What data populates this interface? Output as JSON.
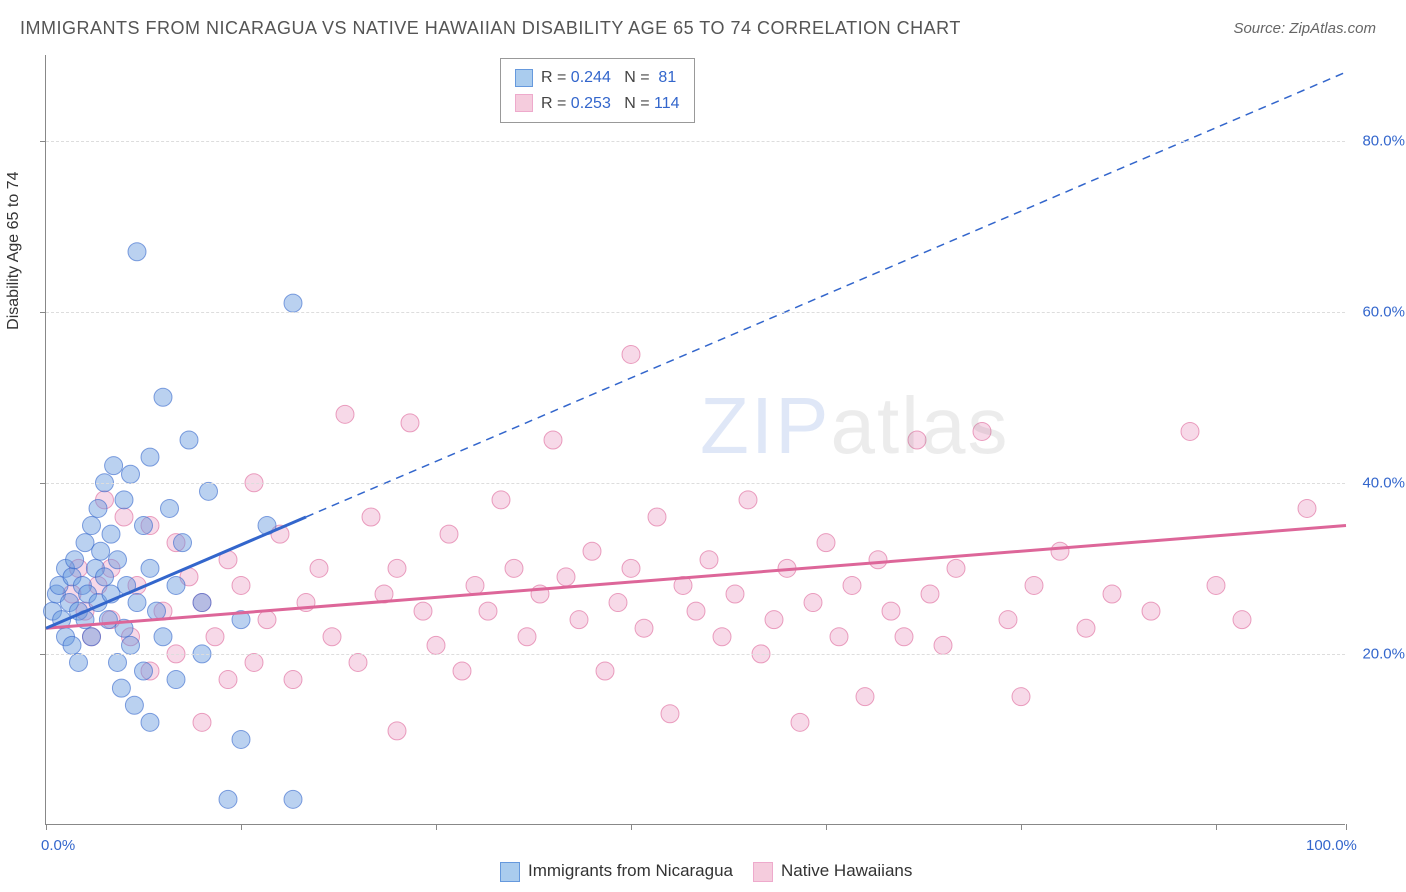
{
  "title": "IMMIGRANTS FROM NICARAGUA VS NATIVE HAWAIIAN DISABILITY AGE 65 TO 74 CORRELATION CHART",
  "source": "Source: ZipAtlas.com",
  "ylabel": "Disability Age 65 to 74",
  "watermark": "ZIPatlas",
  "chart": {
    "type": "scatter",
    "xlim": [
      0,
      100
    ],
    "ylim": [
      0,
      90
    ],
    "x_ticks": [
      0,
      15,
      30,
      45,
      60,
      75,
      90,
      100
    ],
    "y_gridlines": [
      20,
      40,
      60,
      80
    ],
    "x_labels": [
      {
        "v": 0,
        "t": "0.0%"
      },
      {
        "v": 100,
        "t": "100.0%"
      }
    ],
    "y_labels": [
      {
        "v": 20,
        "t": "20.0%"
      },
      {
        "v": 40,
        "t": "40.0%"
      },
      {
        "v": 60,
        "t": "60.0%"
      },
      {
        "v": 80,
        "t": "80.0%"
      }
    ],
    "background_color": "#ffffff",
    "grid_color": "#dddddd",
    "marker_radius": 9,
    "marker_opacity": 0.45,
    "series": [
      {
        "name": "Immigrants from Nicaragua",
        "color": "#6699dd",
        "stroke": "#3366cc",
        "R": "0.244",
        "N": "81",
        "trend": {
          "x1": 0,
          "y1": 23,
          "x2": 20,
          "y2": 36,
          "dashed_to_x": 100,
          "dashed_to_y": 88
        },
        "points": [
          [
            0.5,
            25
          ],
          [
            0.8,
            27
          ],
          [
            1,
            28
          ],
          [
            1.2,
            24
          ],
          [
            1.5,
            30
          ],
          [
            1.5,
            22
          ],
          [
            1.8,
            26
          ],
          [
            2,
            29
          ],
          [
            2,
            21
          ],
          [
            2.2,
            31
          ],
          [
            2.5,
            25
          ],
          [
            2.5,
            19
          ],
          [
            2.8,
            28
          ],
          [
            3,
            33
          ],
          [
            3,
            24
          ],
          [
            3.2,
            27
          ],
          [
            3.5,
            35
          ],
          [
            3.5,
            22
          ],
          [
            3.8,
            30
          ],
          [
            4,
            26
          ],
          [
            4,
            37
          ],
          [
            4.2,
            32
          ],
          [
            4.5,
            40
          ],
          [
            4.5,
            29
          ],
          [
            4.8,
            24
          ],
          [
            5,
            34
          ],
          [
            5,
            27
          ],
          [
            5.2,
            42
          ],
          [
            5.5,
            19
          ],
          [
            5.5,
            31
          ],
          [
            5.8,
            16
          ],
          [
            6,
            38
          ],
          [
            6,
            23
          ],
          [
            6.2,
            28
          ],
          [
            6.5,
            21
          ],
          [
            6.5,
            41
          ],
          [
            6.8,
            14
          ],
          [
            7,
            67
          ],
          [
            7,
            26
          ],
          [
            7.5,
            35
          ],
          [
            7.5,
            18
          ],
          [
            8,
            12
          ],
          [
            8,
            30
          ],
          [
            8,
            43
          ],
          [
            8.5,
            25
          ],
          [
            9,
            50
          ],
          [
            9,
            22
          ],
          [
            9.5,
            37
          ],
          [
            10,
            28
          ],
          [
            10,
            17
          ],
          [
            10.5,
            33
          ],
          [
            11,
            45
          ],
          [
            12,
            26
          ],
          [
            12,
            20
          ],
          [
            12.5,
            39
          ],
          [
            14,
            3
          ],
          [
            15,
            10
          ],
          [
            15,
            24
          ],
          [
            17,
            35
          ],
          [
            19,
            61
          ],
          [
            19,
            3
          ]
        ]
      },
      {
        "name": "Native Hawaiians",
        "color": "#eeaacc",
        "stroke": "#dd6699",
        "R": "0.253",
        "N": "114",
        "trend": {
          "x1": 0,
          "y1": 23,
          "x2": 100,
          "y2": 35
        },
        "points": [
          [
            2,
            27
          ],
          [
            2.5,
            30
          ],
          [
            3,
            25
          ],
          [
            3.5,
            22
          ],
          [
            4,
            28
          ],
          [
            4.5,
            38
          ],
          [
            5,
            30
          ],
          [
            5,
            24
          ],
          [
            6,
            36
          ],
          [
            6.5,
            22
          ],
          [
            7,
            28
          ],
          [
            8,
            35
          ],
          [
            8,
            18
          ],
          [
            9,
            25
          ],
          [
            10,
            33
          ],
          [
            10,
            20
          ],
          [
            11,
            29
          ],
          [
            12,
            12
          ],
          [
            12,
            26
          ],
          [
            13,
            22
          ],
          [
            14,
            17
          ],
          [
            14,
            31
          ],
          [
            15,
            28
          ],
          [
            16,
            40
          ],
          [
            16,
            19
          ],
          [
            17,
            24
          ],
          [
            18,
            34
          ],
          [
            19,
            17
          ],
          [
            20,
            26
          ],
          [
            21,
            30
          ],
          [
            22,
            22
          ],
          [
            23,
            48
          ],
          [
            24,
            19
          ],
          [
            25,
            36
          ],
          [
            26,
            27
          ],
          [
            27,
            11
          ],
          [
            27,
            30
          ],
          [
            28,
            47
          ],
          [
            29,
            25
          ],
          [
            30,
            21
          ],
          [
            31,
            34
          ],
          [
            32,
            18
          ],
          [
            33,
            28
          ],
          [
            34,
            25
          ],
          [
            35,
            38
          ],
          [
            36,
            30
          ],
          [
            37,
            22
          ],
          [
            38,
            27
          ],
          [
            39,
            45
          ],
          [
            40,
            29
          ],
          [
            41,
            24
          ],
          [
            42,
            32
          ],
          [
            43,
            18
          ],
          [
            44,
            26
          ],
          [
            45,
            55
          ],
          [
            45,
            30
          ],
          [
            46,
            23
          ],
          [
            47,
            36
          ],
          [
            48,
            13
          ],
          [
            49,
            28
          ],
          [
            50,
            25
          ],
          [
            51,
            31
          ],
          [
            52,
            22
          ],
          [
            53,
            27
          ],
          [
            54,
            38
          ],
          [
            55,
            20
          ],
          [
            56,
            24
          ],
          [
            57,
            30
          ],
          [
            58,
            12
          ],
          [
            59,
            26
          ],
          [
            60,
            33
          ],
          [
            61,
            22
          ],
          [
            62,
            28
          ],
          [
            63,
            15
          ],
          [
            64,
            31
          ],
          [
            65,
            25
          ],
          [
            66,
            22
          ],
          [
            67,
            45
          ],
          [
            68,
            27
          ],
          [
            69,
            21
          ],
          [
            70,
            30
          ],
          [
            72,
            46
          ],
          [
            74,
            24
          ],
          [
            75,
            15
          ],
          [
            76,
            28
          ],
          [
            78,
            32
          ],
          [
            80,
            23
          ],
          [
            82,
            27
          ],
          [
            85,
            25
          ],
          [
            88,
            46
          ],
          [
            90,
            28
          ],
          [
            92,
            24
          ],
          [
            97,
            37
          ]
        ]
      }
    ]
  },
  "legend_top": {
    "rows": [
      {
        "swatch_fill": "#aaccee",
        "swatch_stroke": "#6699dd",
        "r_label": "R =",
        "r_val": "0.244",
        "n_label": "N =",
        "n_val": " 81"
      },
      {
        "swatch_fill": "#f5ccdd",
        "swatch_stroke": "#eeaacc",
        "r_label": "R =",
        "r_val": "0.253",
        "n_label": "N =",
        "n_val": "114"
      }
    ],
    "label_color": "#444444",
    "value_color": "#3366cc"
  },
  "legend_bottom": {
    "items": [
      {
        "swatch_fill": "#aaccee",
        "swatch_stroke": "#6699dd",
        "label": "Immigrants from Nicaragua"
      },
      {
        "swatch_fill": "#f5ccdd",
        "swatch_stroke": "#eeaacc",
        "label": "Native Hawaiians"
      }
    ]
  }
}
